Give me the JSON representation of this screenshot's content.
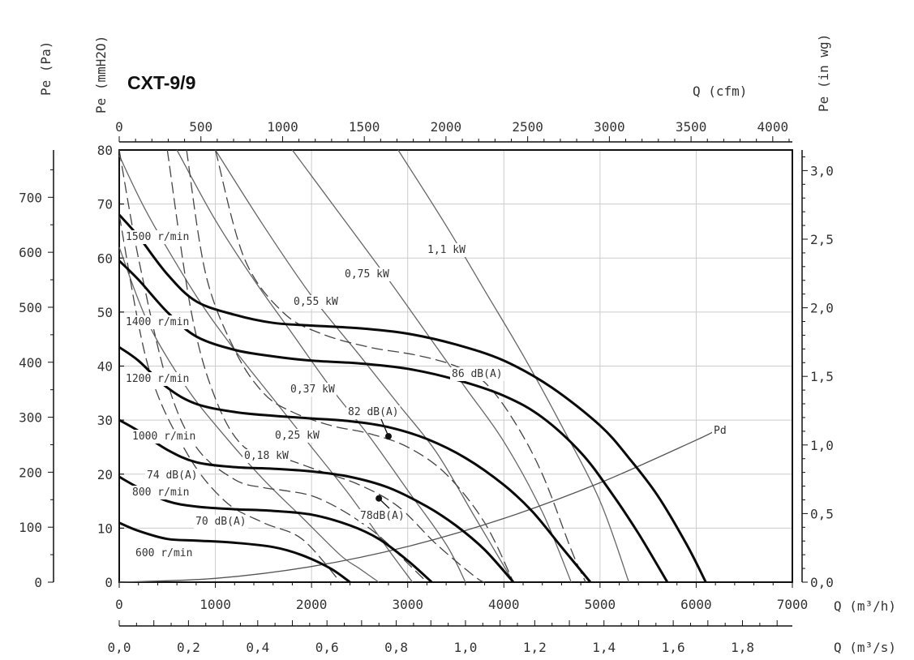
{
  "chart_data": {
    "type": "line",
    "title": "CXT-9/9",
    "axes": {
      "left_pa": {
        "label": "Pe (Pa)",
        "range": [
          0,
          786
        ],
        "ticks": [
          0,
          100,
          200,
          300,
          400,
          500,
          600,
          700
        ]
      },
      "left_mmh2o": {
        "label": "Pe (mmH2O)",
        "range": [
          0,
          80
        ],
        "ticks": [
          0,
          10,
          20,
          30,
          40,
          50,
          60,
          70,
          80
        ]
      },
      "right_inwg": {
        "label": "Pe (in wg)",
        "range": [
          0,
          3.15
        ],
        "ticks": [
          "0,0",
          "0,5",
          "1,0",
          "1,5",
          "2,0",
          "2,5",
          "3,0"
        ]
      },
      "top_cfm": {
        "label": "Q (cfm)",
        "range": [
          0,
          4120
        ],
        "ticks": [
          0,
          500,
          1000,
          1500,
          2000,
          2500,
          3000,
          3500,
          4000
        ]
      },
      "bottom_m3h": {
        "label": "Q (m³/h)",
        "range": [
          0,
          7000
        ],
        "ticks": [
          0,
          1000,
          2000,
          3000,
          4000,
          5000,
          6000,
          7000
        ]
      },
      "bottom_m3s": {
        "label": "Q (m³/s)",
        "range": [
          0,
          1.944
        ],
        "ticks": [
          "0,0",
          "0,2",
          "0,4",
          "0,6",
          "0,8",
          "1,0",
          "1,2",
          "1,4",
          "1,6",
          "1,8"
        ]
      }
    },
    "grid": true,
    "speed_curves": [
      {
        "name": "1500 r/min",
        "x": [
          0,
          200,
          500,
          800,
          1200,
          1600,
          2000,
          2500,
          3000,
          3500,
          4000,
          4500,
          5000,
          5300,
          5600,
          5900,
          6100
        ],
        "y": [
          68,
          64,
          57,
          52,
          49.5,
          48,
          47.5,
          47,
          46,
          44,
          41,
          36,
          29,
          23,
          16,
          7,
          0
        ]
      },
      {
        "name": "1400 r/min",
        "x": [
          0,
          200,
          500,
          800,
          1200,
          1600,
          2000,
          2500,
          3000,
          3500,
          4000,
          4400,
          4800,
          5100,
          5400,
          5700
        ],
        "y": [
          59.5,
          56,
          50,
          45.5,
          43,
          41.8,
          41,
          40.5,
          39.5,
          37.5,
          34.5,
          30.5,
          24,
          17,
          9,
          0
        ]
      },
      {
        "name": "1200 r/min",
        "x": [
          0,
          200,
          500,
          800,
          1200,
          1600,
          2000,
          2400,
          2800,
          3200,
          3600,
          4000,
          4300,
          4600,
          4900
        ],
        "y": [
          43.5,
          41,
          36,
          33,
          31.5,
          30.8,
          30.3,
          29.8,
          28.7,
          26.5,
          23,
          18,
          13,
          6.5,
          0
        ]
      },
      {
        "name": "1000 r/min",
        "x": [
          0,
          200,
          500,
          800,
          1200,
          1600,
          2000,
          2400,
          2800,
          3200,
          3500,
          3800,
          4100
        ],
        "y": [
          30,
          28,
          24.5,
          22.2,
          21.3,
          21,
          20.5,
          19.5,
          17.5,
          14,
          10.5,
          6,
          0
        ]
      },
      {
        "name": "800 r/min",
        "x": [
          0,
          200,
          500,
          800,
          1200,
          1600,
          2000,
          2400,
          2700,
          3000,
          3250
        ],
        "y": [
          19.5,
          17.5,
          15,
          14,
          13.5,
          13.2,
          12.5,
          10.5,
          8,
          4,
          0
        ]
      },
      {
        "name": "600 r/min",
        "x": [
          0,
          200,
          500,
          800,
          1200,
          1600,
          1900,
          2200,
          2400
        ],
        "y": [
          11,
          9.5,
          8,
          7.7,
          7.3,
          6.5,
          5,
          2.5,
          0
        ]
      }
    ],
    "power_curves": [
      {
        "label": "0,18 kW",
        "x": [
          0,
          300,
          700,
          1100,
          1500,
          1900,
          2300,
          2500,
          2700
        ],
        "y": [
          62,
          48,
          36,
          27,
          19,
          12,
          5,
          2.5,
          0
        ]
      },
      {
        "label": "0,25 kW",
        "x": [
          0,
          300,
          800,
          1200,
          1600,
          2000,
          2400,
          2800,
          3050
        ],
        "y": [
          79,
          68,
          53,
          43,
          34,
          25,
          16,
          6,
          0
        ]
      },
      {
        "label": "0,37 kW",
        "x": [
          600,
          1000,
          1400,
          1800,
          2200,
          2600,
          3000,
          3400,
          3600
        ],
        "y": [
          80,
          67,
          56,
          46,
          36,
          27,
          17,
          7,
          0
        ]
      },
      {
        "label": "0,55 kW",
        "x": [
          1000,
          1500,
          2000,
          2500,
          2900,
          3300,
          3700,
          4100
        ],
        "y": [
          80,
          66,
          53,
          42,
          33,
          24,
          12,
          0
        ]
      },
      {
        "label": "0,75 kW",
        "x": [
          1800,
          2300,
          2800,
          3200,
          3600,
          4000,
          4400,
          4700
        ],
        "y": [
          80,
          68,
          56,
          46,
          36,
          26,
          13,
          0
        ]
      },
      {
        "label": "1,1 kW",
        "x": [
          2900,
          3400,
          3800,
          4200,
          4600,
          5000,
          5300
        ],
        "y": [
          80,
          66,
          54,
          42,
          29,
          15,
          0
        ]
      }
    ],
    "noise_curves": [
      {
        "label": "70 dB(A)",
        "x": [
          0,
          300,
          700,
          1100,
          1500,
          1900,
          2300
        ],
        "y": [
          68,
          40,
          24,
          15,
          11,
          8,
          0
        ]
      },
      {
        "label": "74 dB(A)",
        "x": [
          0,
          200,
          500,
          800,
          1200,
          1500,
          1700,
          2000,
          2300,
          2600,
          2800,
          3000,
          3200
        ],
        "y": [
          80,
          60,
          37,
          25,
          19,
          17.5,
          17,
          16,
          13.5,
          10,
          7,
          3.5,
          0
        ]
      },
      {
        "label": "78dB(A)",
        "x": [
          500,
          750,
          1000,
          1300,
          1700,
          2100,
          2500,
          2900,
          3300,
          3700,
          3800
        ],
        "y": [
          80,
          50,
          34,
          25,
          23,
          20.5,
          18,
          14,
          7,
          1,
          0
        ]
      },
      {
        "label": "82 dB(A)",
        "x": [
          700,
          900,
          1200,
          1500,
          1800,
          2200,
          2600,
          3000,
          3400,
          3800,
          4100
        ],
        "y": [
          80,
          57,
          43,
          35,
          31.5,
          29,
          27.5,
          25,
          20,
          11,
          0
        ]
      },
      {
        "label": "86 dB(A)",
        "x": [
          1000,
          1300,
          1700,
          2100,
          2600,
          3100,
          3500,
          3800,
          4100,
          4400,
          4700,
          4850
        ],
        "y": [
          80,
          60,
          50,
          46,
          43.5,
          42,
          40,
          37,
          30,
          20,
          6,
          0
        ]
      }
    ],
    "pd_curve": {
      "label": "Pd",
      "x": [
        0,
        1000,
        2000,
        3000,
        4000,
        5000,
        6000,
        6200
      ],
      "y": [
        0,
        0.7,
        2.9,
        6.6,
        11.8,
        18.4,
        26.3,
        28.1
      ]
    },
    "operating_points": [
      {
        "x": 2700,
        "y": 15.5,
        "label": "78dB(A)"
      },
      {
        "x": 2800,
        "y": 27,
        "label": "82 dB(A)"
      }
    ]
  }
}
